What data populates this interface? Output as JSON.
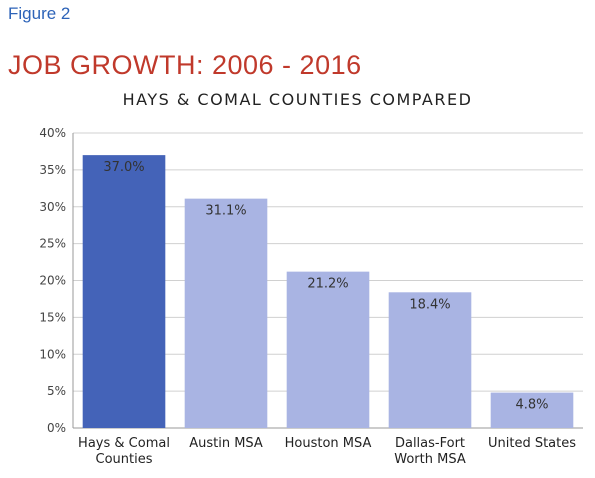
{
  "figure_label": "Figure 2",
  "colors": {
    "highlight": "#4463b8",
    "bar": "#a9b4e3",
    "grid": "#d0d0d0",
    "axis": "#999999"
  },
  "chart_data": {
    "type": "bar",
    "title": "JOB GROWTH: 2006 - 2016",
    "subtitle": "HAYS & COMAL COUNTIES COMPARED",
    "categories": [
      [
        "Hays & Comal",
        "Counties"
      ],
      [
        "Austin MSA"
      ],
      [
        "Houston MSA"
      ],
      [
        "Dallas-Fort",
        "Worth MSA"
      ],
      [
        "United States"
      ]
    ],
    "values": [
      37.0,
      31.1,
      21.2,
      18.4,
      4.8
    ],
    "value_labels": [
      "37.0%",
      "31.1%",
      "21.2%",
      "18.4%",
      "4.8%"
    ],
    "ylim": [
      0,
      40
    ],
    "yticks": [
      0,
      5,
      10,
      15,
      20,
      25,
      30,
      35,
      40
    ],
    "ytick_labels": [
      "0%",
      "5%",
      "10%",
      "15%",
      "20%",
      "25%",
      "30%",
      "35%",
      "40%"
    ],
    "grid": true,
    "highlight_index": 0
  }
}
